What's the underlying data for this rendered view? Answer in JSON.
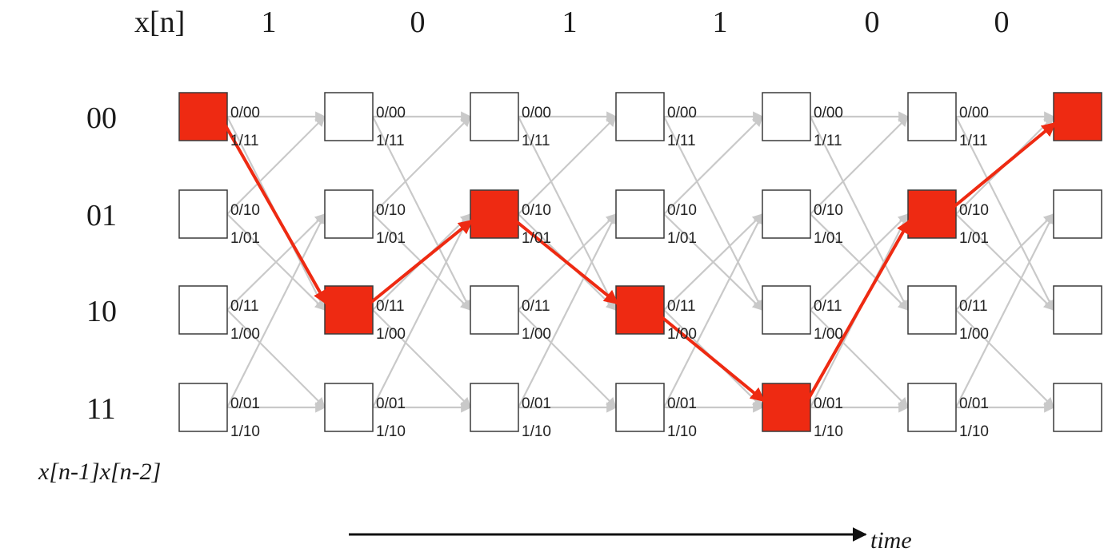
{
  "header": {
    "input_label": "x[n]",
    "bits": [
      "1",
      "0",
      "1",
      "1",
      "0",
      "0"
    ]
  },
  "states": [
    "00",
    "01",
    "10",
    "11"
  ],
  "branch_labels": {
    "00": [
      "0/00",
      "1/11"
    ],
    "01": [
      "0/10",
      "1/01"
    ],
    "10": [
      "0/11",
      "1/00"
    ],
    "11": [
      "0/01",
      "1/10"
    ]
  },
  "state_axis_label": "x[n-1]x[n-2]",
  "time_label": "time",
  "survivor_path": [
    "00",
    "10",
    "01",
    "10",
    "11",
    "01",
    "00"
  ],
  "colors": {
    "path": "#ee2a12",
    "edge": "#c9c9c9",
    "box_border": "#3a3a3a"
  }
}
